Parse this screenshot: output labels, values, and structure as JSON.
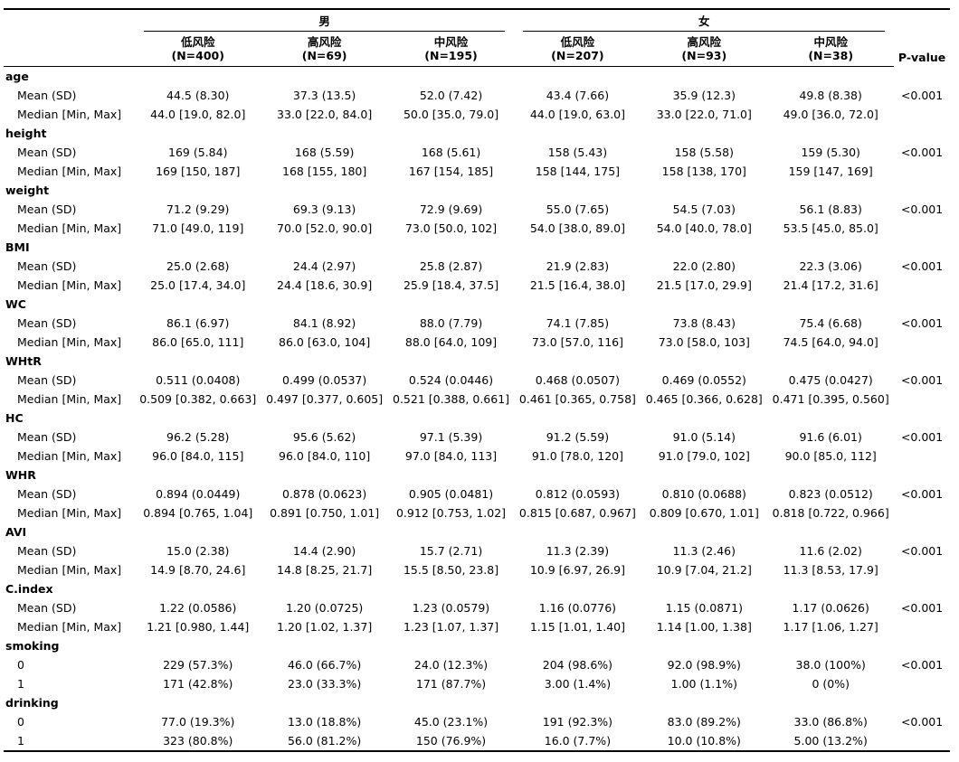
{
  "table": {
    "groups": [
      "男",
      "女"
    ],
    "columns": [
      {
        "name": "低风险",
        "n": "(N=400)"
      },
      {
        "name": "高风险",
        "n": "(N=69)"
      },
      {
        "name": "中风险",
        "n": "(N=195)"
      },
      {
        "name": "低风险",
        "n": "(N=207)"
      },
      {
        "name": "高风险",
        "n": "(N=93)"
      },
      {
        "name": "中风险",
        "n": "(N=38)"
      }
    ],
    "pvalue_header": "P-value",
    "variables": [
      {
        "name": "age",
        "rows": [
          {
            "label": "Mean (SD)",
            "values": [
              "44.5 (8.30)",
              "37.3 (13.5)",
              "52.0 (7.42)",
              "43.4 (7.66)",
              "35.9 (12.3)",
              "49.8 (8.38)"
            ],
            "p": "<0.001"
          },
          {
            "label": "Median [Min, Max]",
            "values": [
              "44.0 [19.0, 82.0]",
              "33.0 [22.0, 84.0]",
              "50.0 [35.0, 79.0]",
              "44.0 [19.0, 63.0]",
              "33.0 [22.0, 71.0]",
              "49.0 [36.0, 72.0]"
            ],
            "p": ""
          }
        ]
      },
      {
        "name": "height",
        "rows": [
          {
            "label": "Mean (SD)",
            "values": [
              "169 (5.84)",
              "168 (5.59)",
              "168 (5.61)",
              "158 (5.43)",
              "158 (5.58)",
              "159 (5.30)"
            ],
            "p": "<0.001"
          },
          {
            "label": "Median [Min, Max]",
            "values": [
              "169 [150, 187]",
              "168 [155, 180]",
              "167 [154, 185]",
              "158 [144, 175]",
              "158 [138, 170]",
              "159 [147, 169]"
            ],
            "p": ""
          }
        ]
      },
      {
        "name": "weight",
        "rows": [
          {
            "label": "Mean (SD)",
            "values": [
              "71.2 (9.29)",
              "69.3 (9.13)",
              "72.9 (9.69)",
              "55.0 (7.65)",
              "54.5 (7.03)",
              "56.1 (8.83)"
            ],
            "p": "<0.001"
          },
          {
            "label": "Median [Min, Max]",
            "values": [
              "71.0 [49.0, 119]",
              "70.0 [52.0, 90.0]",
              "73.0 [50.0, 102]",
              "54.0 [38.0, 89.0]",
              "54.0 [40.0, 78.0]",
              "53.5 [45.0, 85.0]"
            ],
            "p": ""
          }
        ]
      },
      {
        "name": "BMI",
        "rows": [
          {
            "label": "Mean (SD)",
            "values": [
              "25.0 (2.68)",
              "24.4 (2.97)",
              "25.8 (2.87)",
              "21.9 (2.83)",
              "22.0 (2.80)",
              "22.3 (3.06)"
            ],
            "p": "<0.001"
          },
          {
            "label": "Median [Min, Max]",
            "values": [
              "25.0 [17.4, 34.0]",
              "24.4 [18.6, 30.9]",
              "25.9 [18.4, 37.5]",
              "21.5 [16.4, 38.0]",
              "21.5 [17.0, 29.9]",
              "21.4 [17.2, 31.6]"
            ],
            "p": ""
          }
        ]
      },
      {
        "name": "WC",
        "rows": [
          {
            "label": "Mean (SD)",
            "values": [
              "86.1 (6.97)",
              "84.1 (8.92)",
              "88.0 (7.79)",
              "74.1 (7.85)",
              "73.8 (8.43)",
              "75.4 (6.68)"
            ],
            "p": "<0.001"
          },
          {
            "label": "Median [Min, Max]",
            "values": [
              "86.0 [65.0, 111]",
              "86.0 [63.0, 104]",
              "88.0 [64.0, 109]",
              "73.0 [57.0, 116]",
              "73.0 [58.0, 103]",
              "74.5 [64.0, 94.0]"
            ],
            "p": ""
          }
        ]
      },
      {
        "name": "WHtR",
        "rows": [
          {
            "label": "Mean (SD)",
            "values": [
              "0.511 (0.0408)",
              "0.499 (0.0537)",
              "0.524 (0.0446)",
              "0.468 (0.0507)",
              "0.469 (0.0552)",
              "0.475 (0.0427)"
            ],
            "p": "<0.001"
          },
          {
            "label": "Median [Min, Max]",
            "values": [
              "0.509 [0.382, 0.663]",
              "0.497 [0.377, 0.605]",
              "0.521 [0.388, 0.661]",
              "0.461 [0.365, 0.758]",
              "0.465 [0.366, 0.628]",
              "0.471 [0.395, 0.560]"
            ],
            "p": ""
          }
        ]
      },
      {
        "name": "HC",
        "rows": [
          {
            "label": "Mean (SD)",
            "values": [
              "96.2 (5.28)",
              "95.6 (5.62)",
              "97.1 (5.39)",
              "91.2 (5.59)",
              "91.0 (5.14)",
              "91.6 (6.01)"
            ],
            "p": "<0.001"
          },
          {
            "label": "Median [Min, Max]",
            "values": [
              "96.0 [84.0, 115]",
              "96.0 [84.0, 110]",
              "97.0 [84.0, 113]",
              "91.0 [78.0, 120]",
              "91.0 [79.0, 102]",
              "90.0 [85.0, 112]"
            ],
            "p": ""
          }
        ]
      },
      {
        "name": "WHR",
        "rows": [
          {
            "label": "Mean (SD)",
            "values": [
              "0.894 (0.0449)",
              "0.878 (0.0623)",
              "0.905 (0.0481)",
              "0.812 (0.0593)",
              "0.810 (0.0688)",
              "0.823 (0.0512)"
            ],
            "p": "<0.001"
          },
          {
            "label": "Median [Min, Max]",
            "values": [
              "0.894 [0.765, 1.04]",
              "0.891 [0.750, 1.01]",
              "0.912 [0.753, 1.02]",
              "0.815 [0.687, 0.967]",
              "0.809 [0.670, 1.01]",
              "0.818 [0.722, 0.966]"
            ],
            "p": ""
          }
        ]
      },
      {
        "name": "AVI",
        "rows": [
          {
            "label": "Mean (SD)",
            "values": [
              "15.0 (2.38)",
              "14.4 (2.90)",
              "15.7 (2.71)",
              "11.3 (2.39)",
              "11.3 (2.46)",
              "11.6 (2.02)"
            ],
            "p": "<0.001"
          },
          {
            "label": "Median [Min, Max]",
            "values": [
              "14.9 [8.70, 24.6]",
              "14.8 [8.25, 21.7]",
              "15.5 [8.50, 23.8]",
              "10.9 [6.97, 26.9]",
              "10.9 [7.04, 21.2]",
              "11.3 [8.53, 17.9]"
            ],
            "p": ""
          }
        ]
      },
      {
        "name": "C.index",
        "rows": [
          {
            "label": "Mean (SD)",
            "values": [
              "1.22 (0.0586)",
              "1.20 (0.0725)",
              "1.23 (0.0579)",
              "1.16 (0.0776)",
              "1.15 (0.0871)",
              "1.17 (0.0626)"
            ],
            "p": "<0.001"
          },
          {
            "label": "Median [Min, Max]",
            "values": [
              "1.21 [0.980, 1.44]",
              "1.20 [1.02, 1.37]",
              "1.23 [1.07, 1.37]",
              "1.15 [1.01, 1.40]",
              "1.14 [1.00, 1.38]",
              "1.17 [1.06, 1.27]"
            ],
            "p": ""
          }
        ]
      },
      {
        "name": "smoking",
        "rows": [
          {
            "label": "0",
            "values": [
              "229 (57.3%)",
              "46.0 (66.7%)",
              "24.0 (12.3%)",
              "204 (98.6%)",
              "92.0 (98.9%)",
              "38.0 (100%)"
            ],
            "p": "<0.001"
          },
          {
            "label": "1",
            "values": [
              "171 (42.8%)",
              "23.0 (33.3%)",
              "171 (87.7%)",
              "3.00 (1.4%)",
              "1.00 (1.1%)",
              "0 (0%)"
            ],
            "p": ""
          }
        ]
      },
      {
        "name": "drinking",
        "rows": [
          {
            "label": "0",
            "values": [
              "77.0 (19.3%)",
              "13.0 (18.8%)",
              "45.0 (23.1%)",
              "191 (92.3%)",
              "83.0 (89.2%)",
              "33.0 (86.8%)"
            ],
            "p": "<0.001"
          },
          {
            "label": "1",
            "values": [
              "323 (80.8%)",
              "56.0 (81.2%)",
              "150 (76.9%)",
              "16.0 (7.7%)",
              "10.0 (10.8%)",
              "5.00 (13.2%)"
            ],
            "p": ""
          }
        ]
      }
    ]
  }
}
